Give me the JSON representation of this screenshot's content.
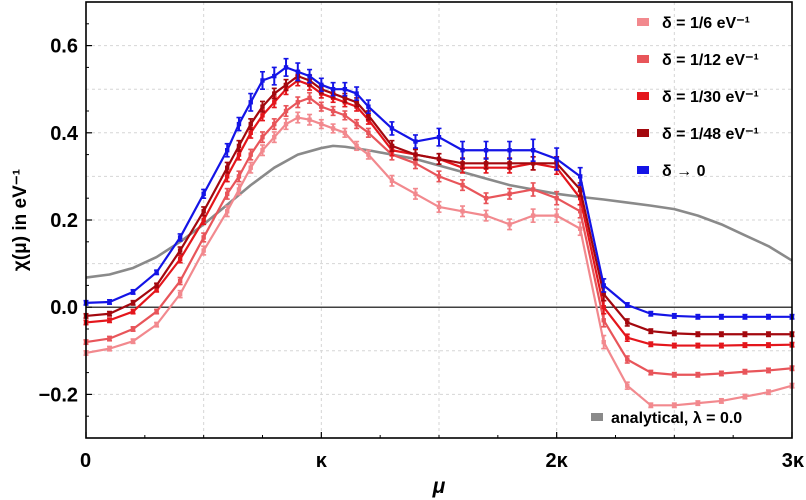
{
  "chart_data": {
    "type": "line",
    "title": "",
    "xlabel": "μ",
    "ylabel": "χ(μ) in eV⁻¹",
    "xlim": [
      0,
      3
    ],
    "ylim": [
      -0.3,
      0.7
    ],
    "x_ticks": [
      {
        "value": 0,
        "label": "0"
      },
      {
        "value": 1,
        "label": "κ"
      },
      {
        "value": 2,
        "label": "2κ"
      },
      {
        "value": 3,
        "label": "3κ"
      }
    ],
    "y_ticks": [
      {
        "value": 0.6,
        "label": "0.6"
      },
      {
        "value": 0.4,
        "label": "0.4"
      },
      {
        "value": 0.2,
        "label": "0.2"
      },
      {
        "value": 0.0,
        "label": "0.0"
      },
      {
        "value": -0.2,
        "label": "−0.2"
      }
    ],
    "grid": true,
    "zero_line": true,
    "legend_position": "top-right",
    "series": [
      {
        "name": "δ = 1/6 eV⁻¹",
        "color": "#f2898e",
        "error_bars": true,
        "x": [
          0,
          0.1,
          0.2,
          0.3,
          0.4,
          0.5,
          0.6,
          0.65,
          0.7,
          0.75,
          0.8,
          0.85,
          0.9,
          0.95,
          1.0,
          1.05,
          1.1,
          1.15,
          1.2,
          1.3,
          1.4,
          1.5,
          1.6,
          1.7,
          1.8,
          1.9,
          2.0,
          2.1,
          2.2,
          2.3,
          2.4,
          2.5,
          2.6,
          2.7,
          2.8,
          2.9,
          3.0
        ],
        "y": [
          -0.105,
          -0.095,
          -0.078,
          -0.04,
          0.03,
          0.13,
          0.22,
          0.27,
          0.32,
          0.36,
          0.39,
          0.42,
          0.435,
          0.43,
          0.42,
          0.41,
          0.4,
          0.37,
          0.35,
          0.29,
          0.26,
          0.23,
          0.22,
          0.21,
          0.19,
          0.21,
          0.21,
          0.18,
          -0.08,
          -0.18,
          -0.225,
          -0.225,
          -0.22,
          -0.215,
          -0.205,
          -0.195,
          -0.18
        ],
        "err": [
          0.005,
          0.005,
          0.005,
          0.005,
          0.008,
          0.01,
          0.012,
          0.012,
          0.012,
          0.012,
          0.012,
          0.012,
          0.012,
          0.012,
          0.01,
          0.01,
          0.01,
          0.01,
          0.01,
          0.012,
          0.012,
          0.012,
          0.012,
          0.012,
          0.012,
          0.015,
          0.015,
          0.015,
          0.015,
          0.008,
          0.005,
          0.005,
          0.005,
          0.005,
          0.005,
          0.005,
          0.005
        ]
      },
      {
        "name": "δ = 1/12 eV⁻¹",
        "color": "#e8555a",
        "error_bars": true,
        "x": [
          0,
          0.1,
          0.2,
          0.3,
          0.4,
          0.5,
          0.6,
          0.65,
          0.7,
          0.75,
          0.8,
          0.85,
          0.9,
          0.95,
          1.0,
          1.05,
          1.1,
          1.15,
          1.2,
          1.3,
          1.4,
          1.5,
          1.6,
          1.7,
          1.8,
          1.9,
          2.0,
          2.1,
          2.2,
          2.3,
          2.4,
          2.5,
          2.6,
          2.7,
          2.8,
          2.9,
          3.0
        ],
        "y": [
          -0.08,
          -0.072,
          -0.05,
          -0.01,
          0.06,
          0.16,
          0.26,
          0.3,
          0.35,
          0.39,
          0.42,
          0.45,
          0.47,
          0.48,
          0.46,
          0.45,
          0.44,
          0.42,
          0.4,
          0.35,
          0.33,
          0.3,
          0.28,
          0.25,
          0.26,
          0.27,
          0.25,
          0.22,
          -0.03,
          -0.12,
          -0.15,
          -0.155,
          -0.155,
          -0.152,
          -0.148,
          -0.145,
          -0.14
        ],
        "err": [
          0.005,
          0.005,
          0.005,
          0.005,
          0.008,
          0.01,
          0.012,
          0.012,
          0.012,
          0.012,
          0.012,
          0.012,
          0.012,
          0.012,
          0.01,
          0.01,
          0.01,
          0.01,
          0.01,
          0.012,
          0.012,
          0.012,
          0.012,
          0.012,
          0.012,
          0.015,
          0.015,
          0.015,
          0.015,
          0.008,
          0.005,
          0.005,
          0.005,
          0.005,
          0.005,
          0.005,
          0.005
        ]
      },
      {
        "name": "δ = 1/30 eV⁻¹",
        "color": "#e4161c",
        "error_bars": true,
        "x": [
          0,
          0.1,
          0.2,
          0.3,
          0.4,
          0.5,
          0.6,
          0.65,
          0.7,
          0.75,
          0.8,
          0.85,
          0.9,
          0.95,
          1.0,
          1.05,
          1.1,
          1.15,
          1.2,
          1.3,
          1.4,
          1.5,
          1.6,
          1.7,
          1.8,
          1.9,
          2.0,
          2.1,
          2.2,
          2.3,
          2.4,
          2.5,
          2.6,
          2.7,
          2.8,
          2.9,
          3.0
        ],
        "y": [
          -0.035,
          -0.03,
          -0.01,
          0.04,
          0.11,
          0.2,
          0.3,
          0.35,
          0.4,
          0.44,
          0.47,
          0.5,
          0.52,
          0.51,
          0.49,
          0.48,
          0.47,
          0.46,
          0.43,
          0.36,
          0.35,
          0.34,
          0.32,
          0.32,
          0.32,
          0.33,
          0.32,
          0.25,
          0.0,
          -0.07,
          -0.085,
          -0.088,
          -0.088,
          -0.088,
          -0.087,
          -0.087,
          -0.086
        ],
        "err": [
          0.005,
          0.005,
          0.005,
          0.005,
          0.008,
          0.01,
          0.012,
          0.012,
          0.012,
          0.012,
          0.012,
          0.012,
          0.012,
          0.012,
          0.01,
          0.01,
          0.01,
          0.01,
          0.01,
          0.012,
          0.012,
          0.012,
          0.012,
          0.012,
          0.012,
          0.015,
          0.015,
          0.015,
          0.015,
          0.008,
          0.005,
          0.005,
          0.005,
          0.005,
          0.005,
          0.005,
          0.005
        ]
      },
      {
        "name": "δ = 1/48 eV⁻¹",
        "color": "#a3080e",
        "error_bars": true,
        "x": [
          0,
          0.1,
          0.2,
          0.3,
          0.4,
          0.5,
          0.6,
          0.65,
          0.7,
          0.75,
          0.8,
          0.85,
          0.9,
          0.95,
          1.0,
          1.05,
          1.1,
          1.15,
          1.2,
          1.3,
          1.4,
          1.5,
          1.6,
          1.7,
          1.8,
          1.9,
          2.0,
          2.1,
          2.2,
          2.3,
          2.4,
          2.5,
          2.6,
          2.7,
          2.8,
          2.9,
          3.0
        ],
        "y": [
          -0.02,
          -0.015,
          0.01,
          0.05,
          0.13,
          0.22,
          0.32,
          0.37,
          0.42,
          0.46,
          0.49,
          0.51,
          0.53,
          0.52,
          0.5,
          0.49,
          0.48,
          0.47,
          0.44,
          0.37,
          0.35,
          0.34,
          0.33,
          0.33,
          0.33,
          0.33,
          0.33,
          0.27,
          0.03,
          -0.035,
          -0.055,
          -0.06,
          -0.062,
          -0.062,
          -0.062,
          -0.062,
          -0.062
        ],
        "err": [
          0.005,
          0.005,
          0.005,
          0.005,
          0.008,
          0.01,
          0.012,
          0.012,
          0.012,
          0.012,
          0.012,
          0.012,
          0.012,
          0.012,
          0.01,
          0.01,
          0.01,
          0.01,
          0.01,
          0.012,
          0.012,
          0.012,
          0.012,
          0.012,
          0.012,
          0.015,
          0.015,
          0.015,
          0.015,
          0.008,
          0.005,
          0.005,
          0.005,
          0.005,
          0.005,
          0.005,
          0.005
        ]
      },
      {
        "name": "δ → 0",
        "color": "#1414e6",
        "error_bars": true,
        "x": [
          0,
          0.1,
          0.2,
          0.3,
          0.4,
          0.5,
          0.6,
          0.65,
          0.7,
          0.75,
          0.8,
          0.85,
          0.9,
          0.95,
          1.0,
          1.05,
          1.1,
          1.15,
          1.2,
          1.3,
          1.4,
          1.5,
          1.6,
          1.7,
          1.8,
          1.9,
          2.0,
          2.1,
          2.2,
          2.3,
          2.4,
          2.5,
          2.6,
          2.7,
          2.8,
          2.9,
          3.0
        ],
        "y": [
          0.01,
          0.012,
          0.035,
          0.08,
          0.16,
          0.26,
          0.36,
          0.42,
          0.47,
          0.52,
          0.53,
          0.55,
          0.54,
          0.53,
          0.51,
          0.5,
          0.5,
          0.49,
          0.46,
          0.41,
          0.38,
          0.39,
          0.36,
          0.36,
          0.36,
          0.36,
          0.34,
          0.3,
          0.05,
          0.005,
          -0.015,
          -0.02,
          -0.022,
          -0.022,
          -0.022,
          -0.022,
          -0.022
        ],
        "err": [
          0.005,
          0.005,
          0.005,
          0.005,
          0.008,
          0.01,
          0.015,
          0.015,
          0.02,
          0.02,
          0.02,
          0.02,
          0.02,
          0.015,
          0.015,
          0.015,
          0.015,
          0.015,
          0.015,
          0.015,
          0.015,
          0.02,
          0.02,
          0.02,
          0.02,
          0.025,
          0.025,
          0.02,
          0.015,
          0.005,
          0.005,
          0.005,
          0.005,
          0.005,
          0.005,
          0.005,
          0.005
        ]
      },
      {
        "name": "analytical, λ = 0.0",
        "color": "#8a8a8a",
        "error_bars": false,
        "x": [
          0,
          0.1,
          0.2,
          0.3,
          0.4,
          0.5,
          0.6,
          0.7,
          0.8,
          0.9,
          1.0,
          1.05,
          1.1,
          1.2,
          1.3,
          1.4,
          1.5,
          1.6,
          1.7,
          1.8,
          1.9,
          2.0,
          2.1,
          2.2,
          2.3,
          2.4,
          2.5,
          2.6,
          2.7,
          2.8,
          2.9,
          3.0
        ],
        "y": [
          0.068,
          0.075,
          0.09,
          0.115,
          0.15,
          0.19,
          0.235,
          0.28,
          0.32,
          0.35,
          0.365,
          0.37,
          0.368,
          0.36,
          0.35,
          0.34,
          0.325,
          0.31,
          0.295,
          0.28,
          0.27,
          0.26,
          0.253,
          0.247,
          0.24,
          0.233,
          0.225,
          0.21,
          0.19,
          0.165,
          0.14,
          0.107
        ]
      }
    ]
  }
}
